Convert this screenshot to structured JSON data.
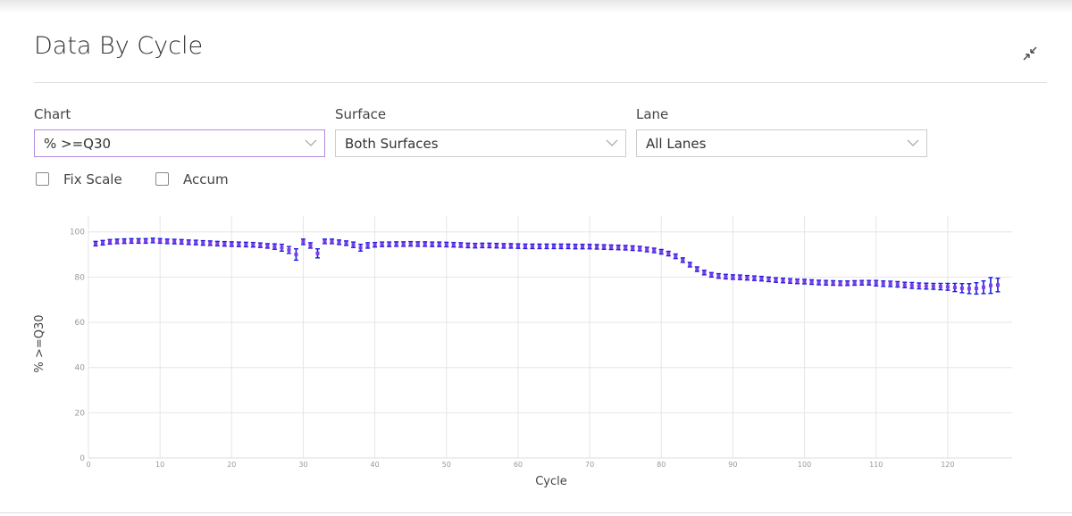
{
  "header": {
    "title": "Data By Cycle"
  },
  "controls": {
    "chart": {
      "label": "Chart",
      "value": "% >=Q30"
    },
    "surface": {
      "label": "Surface",
      "value": "Both Surfaces"
    },
    "lane": {
      "label": "Lane",
      "value": "All Lanes"
    },
    "checkboxes": [
      "Fix Scale",
      "Accum"
    ]
  },
  "chart_data": {
    "type": "errorbar",
    "xlabel": "Cycle",
    "ylabel": "% >=Q30",
    "color": "#1a1ae6",
    "marker_color": "#7b3fe4",
    "grid": true,
    "xlim": [
      0,
      129
    ],
    "ylim": [
      0,
      107
    ],
    "xticks": [
      0,
      10,
      20,
      30,
      40,
      50,
      60,
      70,
      80,
      90,
      100,
      110,
      120
    ],
    "yticks": [
      0,
      20,
      40,
      60,
      80,
      100
    ],
    "x": [
      1,
      2,
      3,
      4,
      5,
      6,
      7,
      8,
      9,
      10,
      11,
      12,
      13,
      14,
      15,
      16,
      17,
      18,
      19,
      20,
      21,
      22,
      23,
      24,
      25,
      26,
      27,
      28,
      29,
      30,
      31,
      32,
      33,
      34,
      35,
      36,
      37,
      38,
      39,
      40,
      41,
      42,
      43,
      44,
      45,
      46,
      47,
      48,
      49,
      50,
      51,
      52,
      53,
      54,
      55,
      56,
      57,
      58,
      59,
      60,
      61,
      62,
      63,
      64,
      65,
      66,
      67,
      68,
      69,
      70,
      71,
      72,
      73,
      74,
      75,
      76,
      77,
      78,
      79,
      80,
      81,
      82,
      83,
      84,
      85,
      86,
      87,
      88,
      89,
      90,
      91,
      92,
      93,
      94,
      95,
      96,
      97,
      98,
      99,
      100,
      101,
      102,
      103,
      104,
      105,
      106,
      107,
      108,
      109,
      110,
      111,
      112,
      113,
      114,
      115,
      116,
      117,
      118,
      119,
      120,
      121,
      122,
      123,
      124,
      125,
      126,
      127
    ],
    "values": [
      94.8,
      95.2,
      95.6,
      95.8,
      95.9,
      96,
      96,
      96,
      96.2,
      96,
      95.8,
      95.7,
      95.6,
      95.4,
      95.3,
      95.1,
      95,
      94.8,
      94.7,
      94.6,
      94.5,
      94.4,
      94.3,
      94.1,
      93.8,
      93.5,
      93,
      92,
      90,
      95.6,
      94,
      90.5,
      95.8,
      95.8,
      95.4,
      95,
      94.3,
      93,
      94,
      94.3,
      94.5,
      94.5,
      94.6,
      94.6,
      94.7,
      94.6,
      94.6,
      94.5,
      94.5,
      94.4,
      94.3,
      94.2,
      94,
      93.9,
      94,
      94,
      93.9,
      93.8,
      93.8,
      93.7,
      93.6,
      93.6,
      93.6,
      93.6,
      93.6,
      93.6,
      93.6,
      93.5,
      93.5,
      93.5,
      93.4,
      93.3,
      93.2,
      93.1,
      93,
      92.8,
      92.6,
      92.2,
      91.8,
      91.2,
      90.4,
      89.2,
      87.5,
      85.5,
      83.5,
      82,
      81,
      80.5,
      80.2,
      80,
      79.9,
      79.7,
      79.5,
      79.3,
      79,
      78.7,
      78.5,
      78.3,
      78.1,
      78,
      77.8,
      77.6,
      77.5,
      77.4,
      77.3,
      77.3,
      77.4,
      77.5,
      77.5,
      77.3,
      77.1,
      77,
      76.8,
      76.5,
      76.3,
      76.1,
      76,
      75.9,
      75.8,
      75.7,
      75.4,
      75.1,
      74.9,
      75,
      75.5,
      76.3,
      76.5
    ],
    "errors": [
      1,
      1,
      1,
      1,
      1,
      1,
      1,
      1,
      1,
      1,
      1,
      1,
      1,
      1,
      1,
      1,
      1,
      1,
      1,
      1,
      1,
      1,
      1,
      1,
      1,
      1.2,
      1.5,
      1.5,
      2.5,
      1.2,
      1.2,
      2,
      1,
      1,
      1,
      1,
      1.2,
      1.5,
      1.2,
      1,
      1,
      1,
      1,
      1,
      1,
      1,
      1,
      1,
      1,
      1,
      1,
      1,
      1,
      1,
      1,
      1,
      1,
      1,
      1,
      1,
      1,
      1,
      1,
      1,
      1,
      1,
      1,
      1,
      1,
      1,
      1,
      1,
      1,
      1,
      1,
      1,
      1,
      1,
      1,
      1,
      1,
      1,
      1,
      1,
      1,
      1,
      1,
      1,
      1,
      1,
      1,
      1,
      1,
      1,
      1,
      1,
      1,
      1,
      1,
      1,
      1,
      1,
      1,
      1,
      1,
      1,
      1,
      1,
      1,
      1.2,
      1.2,
      1.2,
      1.2,
      1.2,
      1.3,
      1.3,
      1.3,
      1.3,
      1.4,
      1.5,
      1.8,
      2,
      2.2,
      2.5,
      2.8,
      3.5,
      3
    ]
  }
}
